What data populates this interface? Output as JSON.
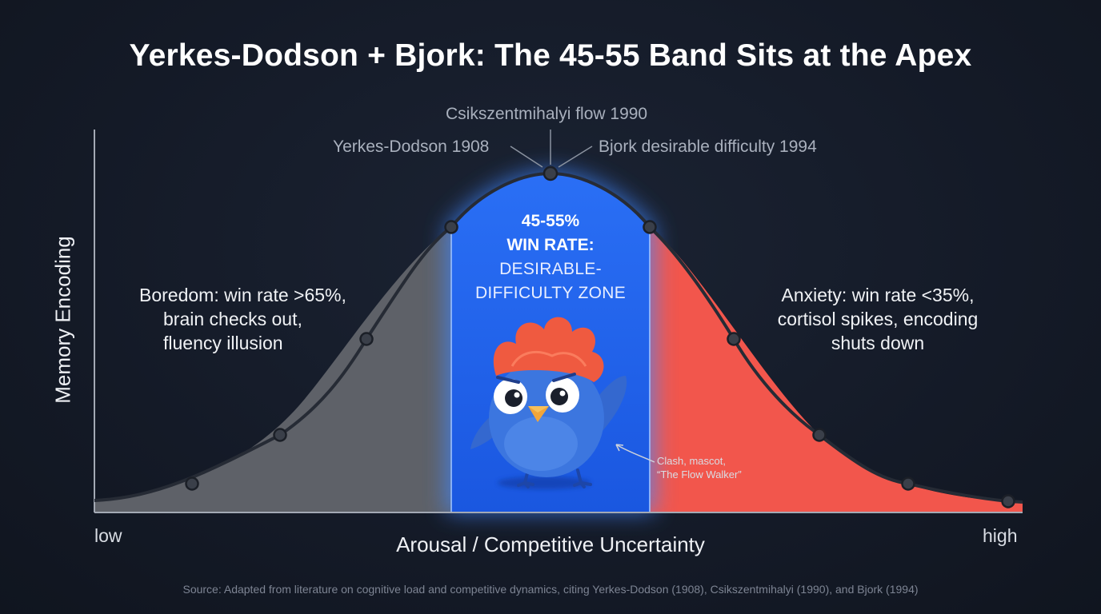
{
  "title": "Yerkes-Dodson + Bjork: The 45-55 Band Sits at the Apex",
  "references": {
    "top": "Csikszentmihalyi flow 1990",
    "left": "Yerkes-Dodson 1908",
    "right": "Bjork desirable difficulty 1994"
  },
  "zone": {
    "line1": "45-55%",
    "line2": "WIN RATE:",
    "line3": "DESIRABLE-",
    "line4": "DIFFICULTY ZONE"
  },
  "boredom": {
    "line1": "Boredom: win rate >65%,",
    "line2": "brain checks out,",
    "line3": "fluency illusion"
  },
  "anxiety": {
    "line1": "Anxiety: win rate <35%,",
    "line2": "cortisol spikes, encoding",
    "line3": "shuts down"
  },
  "mascot": {
    "line1": "Clash, mascot,",
    "line2": "“The Flow Walker”"
  },
  "axes": {
    "x_label": "Arousal / Competitive Uncertainty",
    "y_label": "Memory Encoding",
    "x_low": "low",
    "x_high": "high"
  },
  "source": "Source: Adapted from literature on cognitive load and competitive dynamics, citing Yerkes-Dodson (1908), Csikszentmihalyi (1990), and Bjork (1994)",
  "colors": {
    "boredom_fill": "#5e6168",
    "zone_fill": "#1f63ee",
    "anxiety_fill": "#f2564c",
    "curve": "#262b35",
    "mascot_body": "#3c76df",
    "mascot_crest": "#ef5a40"
  }
}
